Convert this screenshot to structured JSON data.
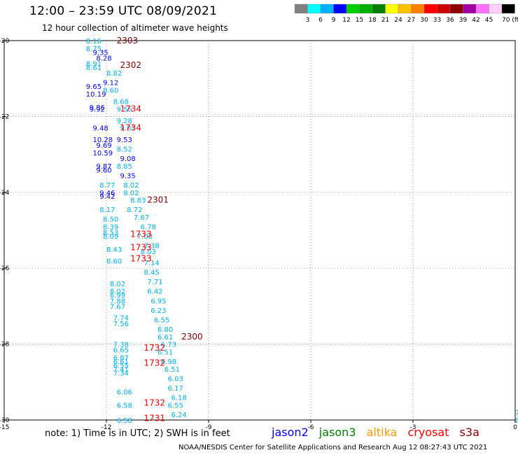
{
  "header": {
    "title": "12:00 – 23:59 UTC 08/09/2021",
    "subtitle": "12 hour collection of altimeter wave heights"
  },
  "legend": {
    "ticks": [
      "3",
      "6",
      "9",
      "12",
      "15",
      "18",
      "21",
      "24",
      "27",
      "30",
      "33",
      "36",
      "39",
      "42",
      "45",
      "70 (ft)"
    ],
    "colors": [
      "#808080",
      "#00ffff",
      "#00b0ff",
      "#0000ff",
      "#00d000",
      "#00b000",
      "#008000",
      "#ffff00",
      "#ffc000",
      "#ff8000",
      "#ff0000",
      "#d00000",
      "#900000",
      "#a000a0",
      "#ff70ff",
      "#ffd0ff",
      "#000000"
    ]
  },
  "chart_data": {
    "type": "scatter",
    "title": "12:00 – 23:59 UTC 08/09/2021",
    "xlabel": "",
    "ylabel": "",
    "xlim": [
      -15,
      0
    ],
    "ylim": [
      -30,
      -20
    ],
    "xticks": [
      -15,
      -12,
      -9,
      -6,
      -3,
      0
    ],
    "yticks": [
      -20,
      -22,
      -24,
      -26,
      -28,
      -30
    ],
    "xtick_labels": [
      "-15",
      "-12",
      "-9",
      "-6",
      "-3",
      "0"
    ],
    "ytick_labels": [
      "-20",
      "-22",
      "-24",
      "-26",
      "-28",
      "-30"
    ],
    "grid": true,
    "series": [
      {
        "type": "swh",
        "points": [
          {
            "x": -12.6,
            "y": -20.0,
            "label": "8.16",
            "color": "#00b0ff"
          },
          {
            "x": -12.6,
            "y": -20.2,
            "label": "8.75",
            "color": "#00b0ff"
          },
          {
            "x": -12.4,
            "y": -20.3,
            "label": "9.35",
            "color": "#0000ff"
          },
          {
            "x": -12.3,
            "y": -20.45,
            "label": "8.28",
            "color": "#0000ff"
          },
          {
            "x": -12.6,
            "y": -20.6,
            "label": "8.91",
            "color": "#00b0ff"
          },
          {
            "x": -12.6,
            "y": -20.7,
            "label": "8.61",
            "color": "#00b0ff"
          },
          {
            "x": -12.0,
            "y": -20.85,
            "label": "8.82",
            "color": "#00b0ff"
          },
          {
            "x": -12.1,
            "y": -21.1,
            "label": "9.12",
            "color": "#0000ff"
          },
          {
            "x": -12.6,
            "y": -21.2,
            "label": "9.65",
            "color": "#0000ff"
          },
          {
            "x": -12.1,
            "y": -21.3,
            "label": "8.60",
            "color": "#00b0ff"
          },
          {
            "x": -12.6,
            "y": -21.4,
            "label": "10.19",
            "color": "#0000ff"
          },
          {
            "x": -11.8,
            "y": -21.6,
            "label": "8.68",
            "color": "#00b0ff"
          },
          {
            "x": -12.5,
            "y": -21.75,
            "label": "9.86",
            "color": "#0000ff"
          },
          {
            "x": -11.7,
            "y": -21.8,
            "label": "9.55",
            "color": "#00b0ff"
          },
          {
            "x": -12.5,
            "y": -21.8,
            "label": "9.92",
            "color": "#0000ff"
          },
          {
            "x": -11.7,
            "y": -22.1,
            "label": "9.28",
            "color": "#00b0ff"
          },
          {
            "x": -12.4,
            "y": -22.3,
            "label": "9.48",
            "color": "#0000ff"
          },
          {
            "x": -11.6,
            "y": -22.3,
            "label": "9.07",
            "color": "#00b0ff"
          },
          {
            "x": -12.4,
            "y": -22.6,
            "label": "10.28",
            "color": "#0000ff"
          },
          {
            "x": -11.7,
            "y": -22.6,
            "label": "9.53",
            "color": "#0000ff"
          },
          {
            "x": -12.3,
            "y": -22.75,
            "label": "9.69",
            "color": "#0000ff"
          },
          {
            "x": -11.7,
            "y": -22.85,
            "label": "8.52",
            "color": "#00b0ff"
          },
          {
            "x": -12.4,
            "y": -22.95,
            "label": "10.59",
            "color": "#0000ff"
          },
          {
            "x": -11.6,
            "y": -23.1,
            "label": "9.08",
            "color": "#0000ff"
          },
          {
            "x": -12.3,
            "y": -23.3,
            "label": "9.87",
            "color": "#0000ff"
          },
          {
            "x": -11.7,
            "y": -23.3,
            "label": "8.85",
            "color": "#00b0ff"
          },
          {
            "x": -12.3,
            "y": -23.4,
            "label": "9.60",
            "color": "#0000ff"
          },
          {
            "x": -11.6,
            "y": -23.55,
            "label": "9.35",
            "color": "#0000ff"
          },
          {
            "x": -12.2,
            "y": -23.8,
            "label": "8.77",
            "color": "#00b0ff"
          },
          {
            "x": -11.5,
            "y": -23.8,
            "label": "8.02",
            "color": "#00b0ff"
          },
          {
            "x": -12.2,
            "y": -24.0,
            "label": "9.46",
            "color": "#0000ff"
          },
          {
            "x": -11.5,
            "y": -24.0,
            "label": "8.02",
            "color": "#00b0ff"
          },
          {
            "x": -12.2,
            "y": -24.1,
            "label": "9.42",
            "color": "#0000ff"
          },
          {
            "x": -11.3,
            "y": -24.2,
            "label": "8.83",
            "color": "#00b0ff"
          },
          {
            "x": -12.2,
            "y": -24.45,
            "label": "8.17",
            "color": "#00b0ff"
          },
          {
            "x": -11.4,
            "y": -24.45,
            "label": "8.72",
            "color": "#00b0ff"
          },
          {
            "x": -12.1,
            "y": -24.7,
            "label": "8.50",
            "color": "#00b0ff"
          },
          {
            "x": -11.2,
            "y": -24.65,
            "label": "7.67",
            "color": "#00b0ff"
          },
          {
            "x": -12.1,
            "y": -24.9,
            "label": "8.39",
            "color": "#00b0ff"
          },
          {
            "x": -11.0,
            "y": -24.9,
            "label": "6.78",
            "color": "#00b0ff"
          },
          {
            "x": -12.1,
            "y": -25.05,
            "label": "8.53",
            "color": "#00b0ff"
          },
          {
            "x": -12.1,
            "y": -25.15,
            "label": "8.09",
            "color": "#00b0ff"
          },
          {
            "x": -11.1,
            "y": -25.15,
            "label": "7.08",
            "color": "#00b0ff"
          },
          {
            "x": -12.0,
            "y": -25.5,
            "label": "8.43",
            "color": "#00b0ff"
          },
          {
            "x": -10.9,
            "y": -25.4,
            "label": "7.38",
            "color": "#00b0ff"
          },
          {
            "x": -11.0,
            "y": -25.55,
            "label": "8.03",
            "color": "#00b0ff"
          },
          {
            "x": -12.0,
            "y": -25.8,
            "label": "8.60",
            "color": "#00b0ff"
          },
          {
            "x": -10.9,
            "y": -25.85,
            "label": "7.14",
            "color": "#00b0ff"
          },
          {
            "x": -10.9,
            "y": -26.1,
            "label": "8.45",
            "color": "#00b0ff"
          },
          {
            "x": -11.9,
            "y": -26.4,
            "label": "8.02",
            "color": "#00b0ff"
          },
          {
            "x": -10.8,
            "y": -26.35,
            "label": "7.71",
            "color": "#00b0ff"
          },
          {
            "x": -11.9,
            "y": -26.6,
            "label": "8.02",
            "color": "#00b0ff"
          },
          {
            "x": -10.8,
            "y": -26.6,
            "label": "6.42",
            "color": "#00b0ff"
          },
          {
            "x": -11.9,
            "y": -26.7,
            "label": "6.99",
            "color": "#00b0ff"
          },
          {
            "x": -11.9,
            "y": -26.85,
            "label": "7.88",
            "color": "#00b0ff"
          },
          {
            "x": -10.7,
            "y": -26.85,
            "label": "6.95",
            "color": "#00b0ff"
          },
          {
            "x": -11.9,
            "y": -27.0,
            "label": "7.67",
            "color": "#00b0ff"
          },
          {
            "x": -10.7,
            "y": -27.1,
            "label": "6.23",
            "color": "#00b0ff"
          },
          {
            "x": -11.8,
            "y": -27.3,
            "label": "7.74",
            "color": "#00b0ff"
          },
          {
            "x": -10.6,
            "y": -27.35,
            "label": "6.55",
            "color": "#00b0ff"
          },
          {
            "x": -11.8,
            "y": -27.45,
            "label": "7.56",
            "color": "#00b0ff"
          },
          {
            "x": -10.5,
            "y": -27.6,
            "label": "6.80",
            "color": "#00b0ff"
          },
          {
            "x": -10.5,
            "y": -27.8,
            "label": "6.61",
            "color": "#00b0ff"
          },
          {
            "x": -11.8,
            "y": -28.0,
            "label": "7.38",
            "color": "#00b0ff"
          },
          {
            "x": -10.4,
            "y": -28.0,
            "label": "6.73",
            "color": "#00b0ff"
          },
          {
            "x": -11.8,
            "y": -28.15,
            "label": "6.65",
            "color": "#00b0ff"
          },
          {
            "x": -10.5,
            "y": -28.2,
            "label": "6.51",
            "color": "#00b0ff"
          },
          {
            "x": -11.8,
            "y": -28.35,
            "label": "6.87",
            "color": "#00b0ff"
          },
          {
            "x": -11.8,
            "y": -28.45,
            "label": "6.61",
            "color": "#00b0ff"
          },
          {
            "x": -10.4,
            "y": -28.45,
            "label": "6.98",
            "color": "#00b0ff"
          },
          {
            "x": -11.8,
            "y": -28.55,
            "label": "6.55",
            "color": "#00b0ff"
          },
          {
            "x": -11.8,
            "y": -28.65,
            "label": "7.41",
            "color": "#00b0ff"
          },
          {
            "x": -10.3,
            "y": -28.65,
            "label": "6.51",
            "color": "#00b0ff"
          },
          {
            "x": -11.8,
            "y": -28.75,
            "label": "7.34",
            "color": "#00b0ff"
          },
          {
            "x": -10.2,
            "y": -28.9,
            "label": "6.03",
            "color": "#00b0ff"
          },
          {
            "x": -10.2,
            "y": -29.15,
            "label": "6.17",
            "color": "#00b0ff"
          },
          {
            "x": -11.7,
            "y": -29.25,
            "label": "6.06",
            "color": "#00b0ff"
          },
          {
            "x": -10.1,
            "y": -29.4,
            "label": "6.18",
            "color": "#00b0ff"
          },
          {
            "x": -11.7,
            "y": -29.6,
            "label": "6.58",
            "color": "#00b0ff"
          },
          {
            "x": -10.2,
            "y": -29.6,
            "label": "6.55",
            "color": "#00b0ff"
          },
          {
            "x": -10.1,
            "y": -29.85,
            "label": "6.24",
            "color": "#00b0ff"
          },
          {
            "x": -11.7,
            "y": -30.0,
            "label": "6.58",
            "color": "#00b0ff"
          },
          {
            "x": 0.0,
            "y": -29.8,
            "label": "7",
            "color": "#00b0ff"
          },
          {
            "x": 0.0,
            "y": -30.0,
            "label": "8",
            "color": "#00b0ff"
          }
        ]
      },
      {
        "type": "time",
        "points": [
          {
            "x": -11.7,
            "y": -20.0,
            "label": "2303",
            "color": "#800000"
          },
          {
            "x": -11.6,
            "y": -20.65,
            "label": "2302",
            "color": "#800000"
          },
          {
            "x": -11.6,
            "y": -21.8,
            "label": "1734",
            "color": "#ff0000"
          },
          {
            "x": -11.6,
            "y": -22.3,
            "label": "1734",
            "color": "#ff0000"
          },
          {
            "x": -10.8,
            "y": -24.2,
            "label": "2301",
            "color": "#800000"
          },
          {
            "x": -11.3,
            "y": -25.1,
            "label": "1733",
            "color": "#ff0000"
          },
          {
            "x": -11.3,
            "y": -25.45,
            "label": "1733",
            "color": "#ff0000"
          },
          {
            "x": -11.3,
            "y": -25.75,
            "label": "1733",
            "color": "#ff0000"
          },
          {
            "x": -9.8,
            "y": -27.8,
            "label": "2300",
            "color": "#800000"
          },
          {
            "x": -10.9,
            "y": -28.1,
            "label": "1732",
            "color": "#ff0000"
          },
          {
            "x": -10.9,
            "y": -28.5,
            "label": "1732",
            "color": "#ff0000"
          },
          {
            "x": -10.9,
            "y": -29.55,
            "label": "1732",
            "color": "#ff0000"
          },
          {
            "x": -10.9,
            "y": -29.95,
            "label": "1731",
            "color": "#ff0000"
          }
        ]
      }
    ]
  },
  "note": "note:  1) Time is in UTC;  2) SWH is in feet",
  "satellites": [
    {
      "name": "jason2",
      "color": "#0000ff"
    },
    {
      "name": "jason3",
      "color": "#008000"
    },
    {
      "name": "altika",
      "color": "#ff9900"
    },
    {
      "name": "cryosat",
      "color": "#ff0000"
    },
    {
      "name": "s3a",
      "color": "#800000"
    }
  ],
  "credits": "NOAA/NESDIS Center for Satellite Applications and Research     Aug 12 08:27:43 UTC 2021"
}
